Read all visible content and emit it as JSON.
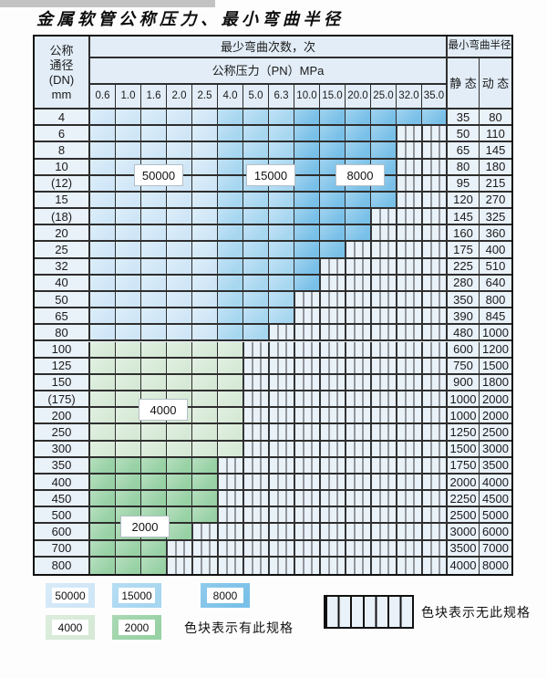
{
  "title": "金属软管公称压力、最小弯曲半径",
  "table": {
    "corner": {
      "line1": "公称",
      "line2": "通径",
      "line3": "(DN)",
      "line4": "mm"
    },
    "bend_cycles_header": "最少弯曲次数，次",
    "pressure_header": "公称压力（PN）MPa",
    "pressure_cols": [
      "0.6",
      "1.0",
      "1.6",
      "2.0",
      "2.5",
      "4.0",
      "5.0",
      "6.3",
      "10.0",
      "15.0",
      "20.0",
      "25.0",
      "32.0",
      "35.0"
    ],
    "radius_header": "最小弯曲半径",
    "static_header": "静 态",
    "dynamic_header": "动 态",
    "rows": [
      {
        "dn": "4",
        "available_cols": 14,
        "static": "35",
        "dynamic": "80"
      },
      {
        "dn": "6",
        "available_cols": 12,
        "static": "50",
        "dynamic": "110"
      },
      {
        "dn": "8",
        "available_cols": 12,
        "static": "65",
        "dynamic": "145"
      },
      {
        "dn": "10",
        "available_cols": 12,
        "static": "80",
        "dynamic": "180"
      },
      {
        "dn": "(12)",
        "available_cols": 12,
        "static": "95",
        "dynamic": "215"
      },
      {
        "dn": "15",
        "available_cols": 12,
        "static": "120",
        "dynamic": "270"
      },
      {
        "dn": "(18)",
        "available_cols": 11,
        "static": "145",
        "dynamic": "325"
      },
      {
        "dn": "20",
        "available_cols": 11,
        "static": "160",
        "dynamic": "360"
      },
      {
        "dn": "25",
        "available_cols": 10,
        "static": "175",
        "dynamic": "400"
      },
      {
        "dn": "32",
        "available_cols": 9,
        "static": "225",
        "dynamic": "510"
      },
      {
        "dn": "40",
        "available_cols": 9,
        "static": "280",
        "dynamic": "640"
      },
      {
        "dn": "50",
        "available_cols": 8,
        "static": "350",
        "dynamic": "800"
      },
      {
        "dn": "65",
        "available_cols": 8,
        "static": "390",
        "dynamic": "845"
      },
      {
        "dn": "80",
        "available_cols": 7,
        "static": "480",
        "dynamic": "1000"
      },
      {
        "dn": "100",
        "available_cols": 6,
        "static": "600",
        "dynamic": "1200"
      },
      {
        "dn": "125",
        "available_cols": 6,
        "static": "750",
        "dynamic": "1500"
      },
      {
        "dn": "150",
        "available_cols": 6,
        "static": "900",
        "dynamic": "1800"
      },
      {
        "dn": "(175)",
        "available_cols": 6,
        "static": "1000",
        "dynamic": "2000"
      },
      {
        "dn": "200",
        "available_cols": 6,
        "static": "1000",
        "dynamic": "2000"
      },
      {
        "dn": "250",
        "available_cols": 6,
        "static": "1250",
        "dynamic": "2500"
      },
      {
        "dn": "300",
        "available_cols": 6,
        "static": "1500",
        "dynamic": "3000"
      },
      {
        "dn": "350",
        "available_cols": 5,
        "static": "1750",
        "dynamic": "3500"
      },
      {
        "dn": "400",
        "available_cols": 5,
        "static": "2000",
        "dynamic": "4000"
      },
      {
        "dn": "450",
        "available_cols": 5,
        "static": "2250",
        "dynamic": "4500"
      },
      {
        "dn": "500",
        "available_cols": 5,
        "static": "2500",
        "dynamic": "5000"
      },
      {
        "dn": "600",
        "available_cols": 4,
        "static": "3000",
        "dynamic": "6000"
      },
      {
        "dn": "700",
        "available_cols": 3,
        "static": "3500",
        "dynamic": "7000"
      },
      {
        "dn": "800",
        "available_cols": 3,
        "static": "4000",
        "dynamic": "8000"
      }
    ],
    "blue_bands": [
      {
        "cycles": "50000",
        "col_start": 0,
        "col_end": 4
      },
      {
        "cycles": "15000",
        "col_start": 5,
        "col_end": 7
      },
      {
        "cycles": "8000",
        "col_start": 8,
        "col_end": 13
      }
    ],
    "green_bands": [
      {
        "cycles": "4000",
        "row_start": 14,
        "row_end": 20
      },
      {
        "cycles": "2000",
        "row_start": 21,
        "row_end": 27
      }
    ],
    "cycle_labels": [
      {
        "id": "label-50000",
        "text": "50000"
      },
      {
        "id": "label-15000",
        "text": "15000"
      },
      {
        "id": "label-8000",
        "text": "8000"
      },
      {
        "id": "label-4000",
        "text": "4000"
      },
      {
        "id": "label-2000",
        "text": "2000"
      }
    ]
  },
  "colors": {
    "blue_50000": "#cfe6f7",
    "blue_15000": "#a6d6f0",
    "blue_8000": "#79c0e8",
    "green_4000": "#d6e9d6",
    "green_2000": "#97d1a4",
    "header_bg": "#e2edf7",
    "cell_bg": "#e9f1f9"
  },
  "legend": {
    "items": [
      {
        "label": "50000",
        "color": "#cfe6f7"
      },
      {
        "label": "15000",
        "color": "#a6d6f0"
      },
      {
        "label": "8000",
        "color": "#79c0e8"
      },
      {
        "label": "4000",
        "color": "#d6e9d6"
      },
      {
        "label": "2000",
        "color": "#97d1a4"
      }
    ],
    "has_spec_text": "色块表示有此规格",
    "no_spec_text": "色块表示无此规格"
  }
}
